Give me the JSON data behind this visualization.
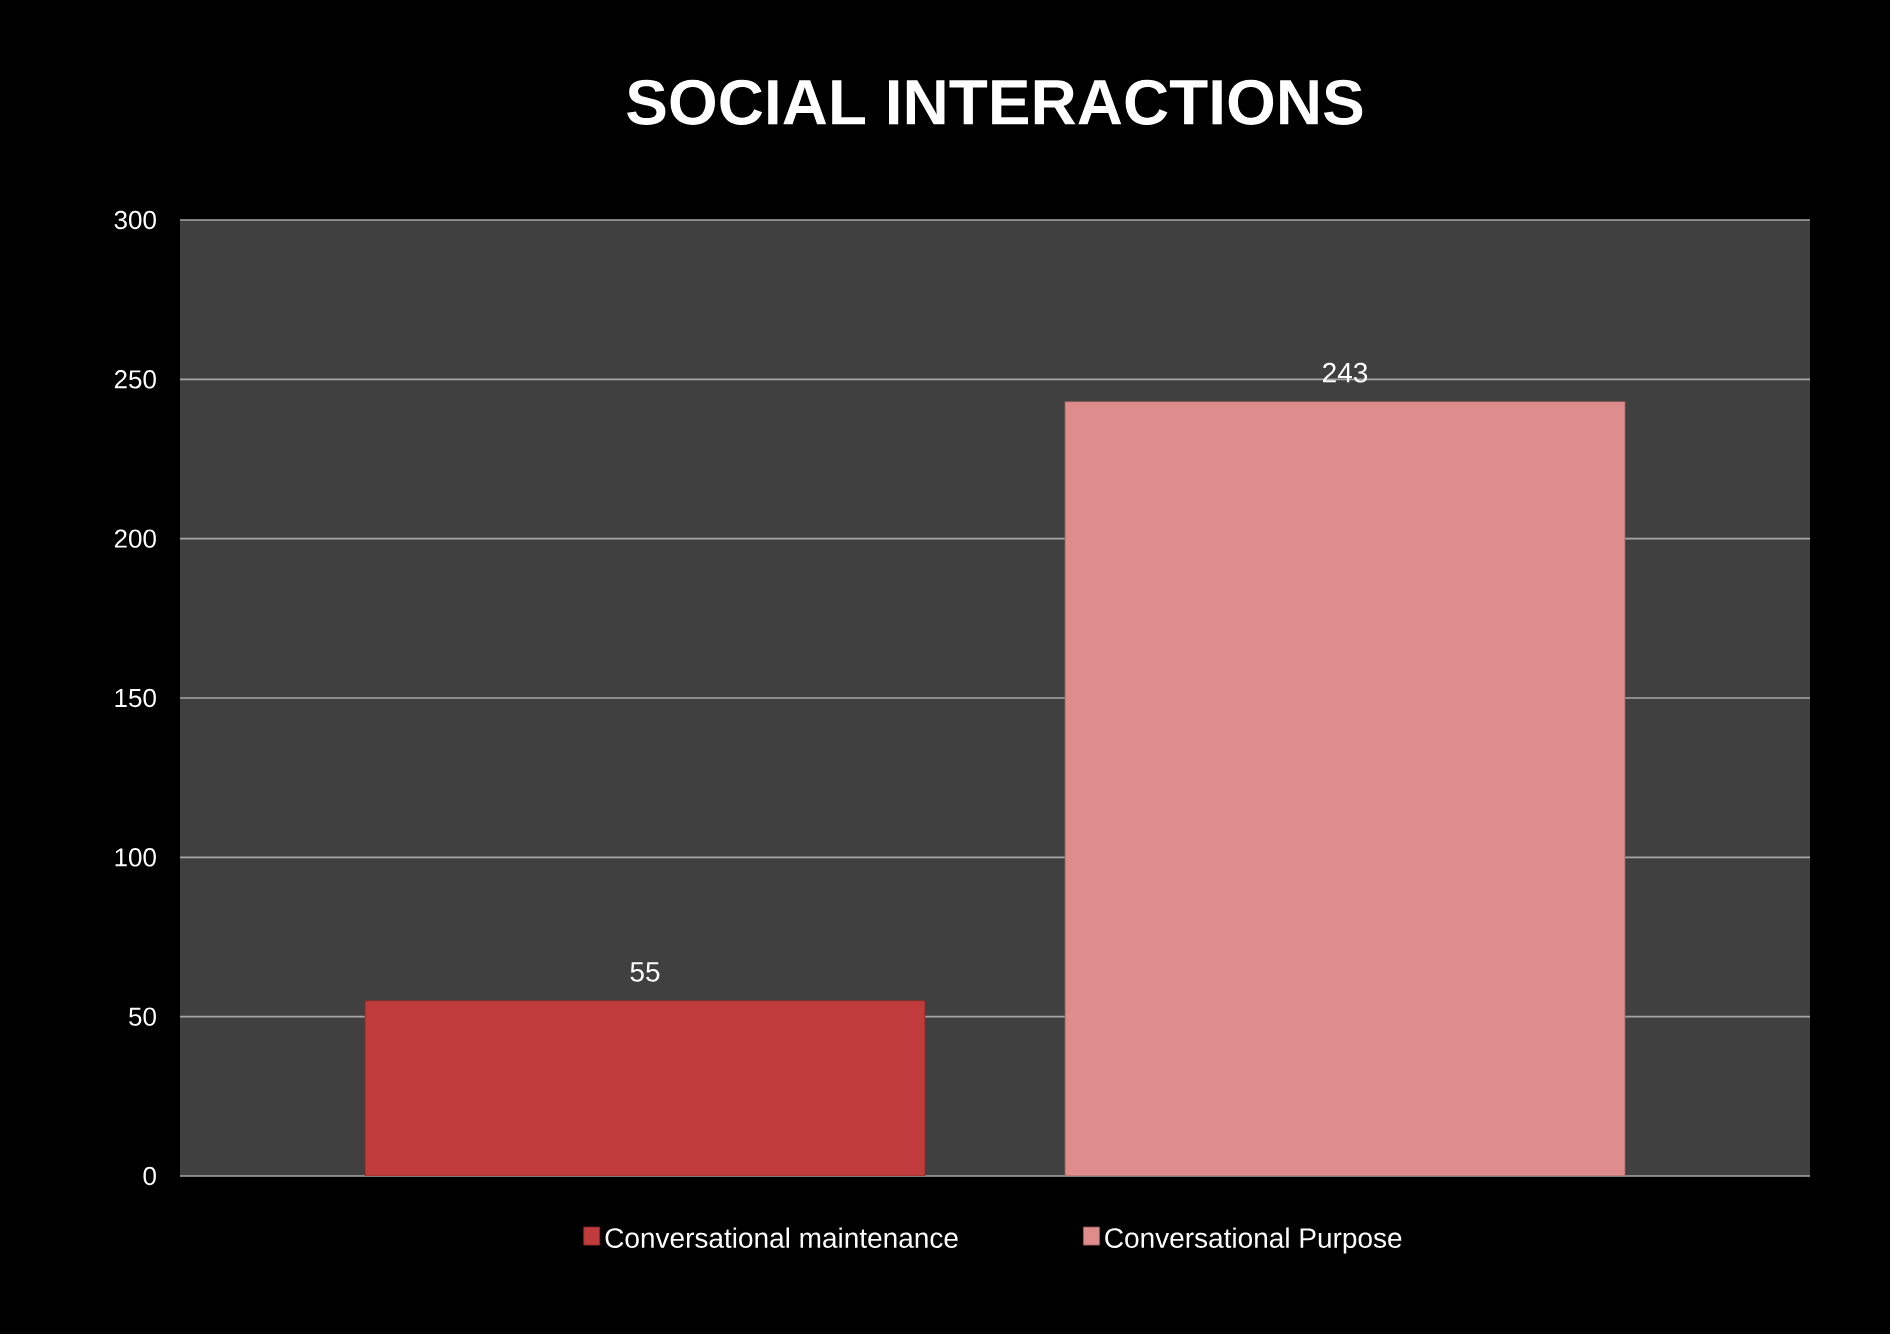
{
  "chart_data": {
    "type": "bar",
    "title": "SOCIAL INTERACTIONS",
    "categories": [
      null
    ],
    "series": [
      {
        "name": "Conversational maintenance",
        "color": "#c03c3c",
        "values": [
          55
        ]
      },
      {
        "name": "Conversational Purpose",
        "color": "#de8c8c",
        "values": [
          243
        ]
      }
    ],
    "ylim": [
      0,
      300
    ],
    "yticks": [
      0,
      50,
      100,
      150,
      200,
      250,
      300
    ],
    "grid": "y",
    "legend": "bottom",
    "data_labels": true
  }
}
